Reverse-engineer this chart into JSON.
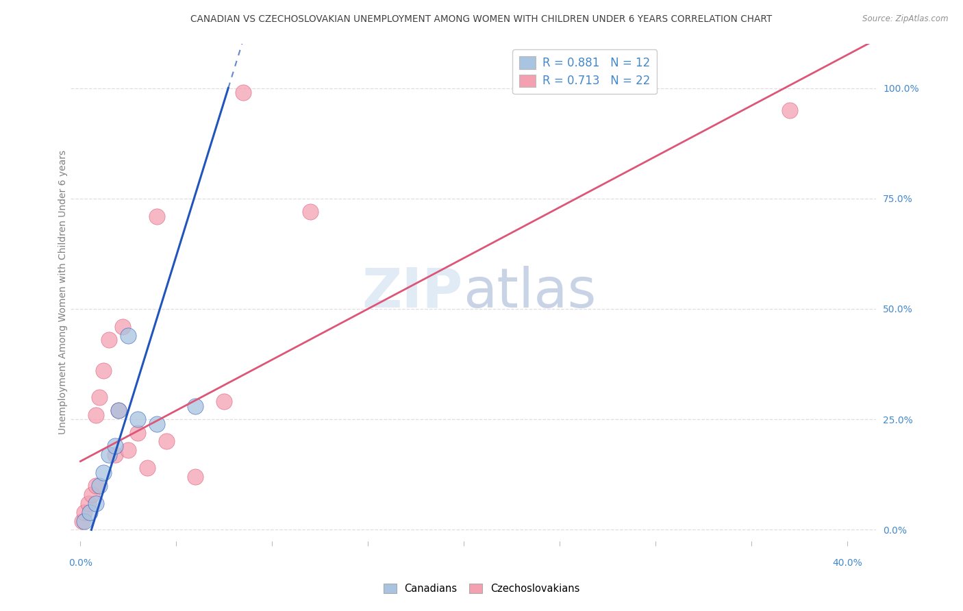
{
  "title": "CANADIAN VS CZECHOSLOVAKIAN UNEMPLOYMENT AMONG WOMEN WITH CHILDREN UNDER 6 YEARS CORRELATION CHART",
  "source": "Source: ZipAtlas.com",
  "ylabel": "Unemployment Among Women with Children Under 6 years",
  "canadian_R": 0.881,
  "canadian_N": 12,
  "czechoslovakian_R": 0.713,
  "czechoslovakian_N": 22,
  "canadian_color": "#a8c4e0",
  "czechoslovakian_color": "#f4a0b0",
  "canadian_line_color": "#2255bb",
  "czechoslovakian_line_color": "#dd5577",
  "canadian_x": [
    0.002,
    0.005,
    0.008,
    0.01,
    0.012,
    0.015,
    0.018,
    0.02,
    0.025,
    0.03,
    0.04,
    0.06
  ],
  "canadian_y": [
    0.02,
    0.04,
    0.06,
    0.1,
    0.13,
    0.17,
    0.19,
    0.27,
    0.44,
    0.25,
    0.24,
    0.28
  ],
  "czechoslovakian_x": [
    0.001,
    0.002,
    0.004,
    0.006,
    0.008,
    0.008,
    0.01,
    0.012,
    0.015,
    0.018,
    0.02,
    0.022,
    0.025,
    0.03,
    0.035,
    0.04,
    0.045,
    0.06,
    0.075,
    0.085,
    0.12,
    0.37
  ],
  "czechoslovakian_y": [
    0.02,
    0.04,
    0.06,
    0.08,
    0.1,
    0.26,
    0.3,
    0.36,
    0.43,
    0.17,
    0.27,
    0.46,
    0.18,
    0.22,
    0.14,
    0.71,
    0.2,
    0.12,
    0.29,
    0.99,
    0.72,
    0.95
  ],
  "can_slope": 14.0,
  "can_intercept": -0.08,
  "czs_slope": 2.3,
  "czs_intercept": 0.155,
  "xmin": -0.005,
  "xmax": 0.415,
  "ymin": -0.025,
  "ymax": 1.1,
  "ytick_vals": [
    0.0,
    0.25,
    0.5,
    0.75,
    1.0
  ],
  "ytick_labels": [
    "0.0%",
    "25.0%",
    "50.0%",
    "75.0%",
    "100.0%"
  ],
  "grid_color": "#e4dcdc",
  "bg_color": "#ffffff",
  "title_color": "#404040",
  "source_color": "#909090",
  "ylabel_color": "#808080",
  "tick_color": "#4488cc"
}
